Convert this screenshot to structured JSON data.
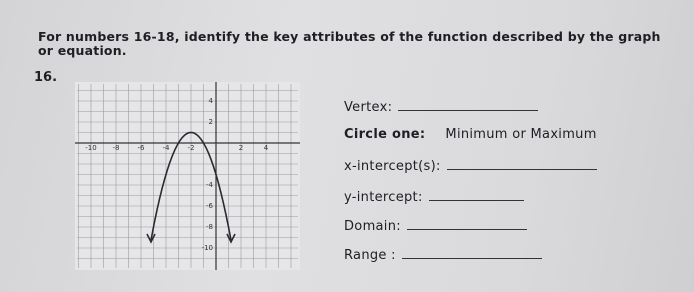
{
  "instructions": {
    "line1": "For numbers 16-18, identify the key attributes of the function described by the graph",
    "line2": "or equation."
  },
  "problem": {
    "number": "16.",
    "graph": {
      "x_labels": [
        "-10",
        "-8",
        "-6",
        "-4",
        "-2",
        "2",
        "4"
      ],
      "y_labels": [
        "4",
        "2",
        "-4",
        "-6",
        "-8",
        "-10"
      ]
    },
    "fields": {
      "vertex": "Vertex:",
      "circle_one": "Circle one:",
      "choices": "Minimum or Maximum",
      "x_intercepts": "x-intercept(s):",
      "y_intercept": "y-intercept:",
      "domain": "Domain:",
      "range": "Range :"
    }
  }
}
